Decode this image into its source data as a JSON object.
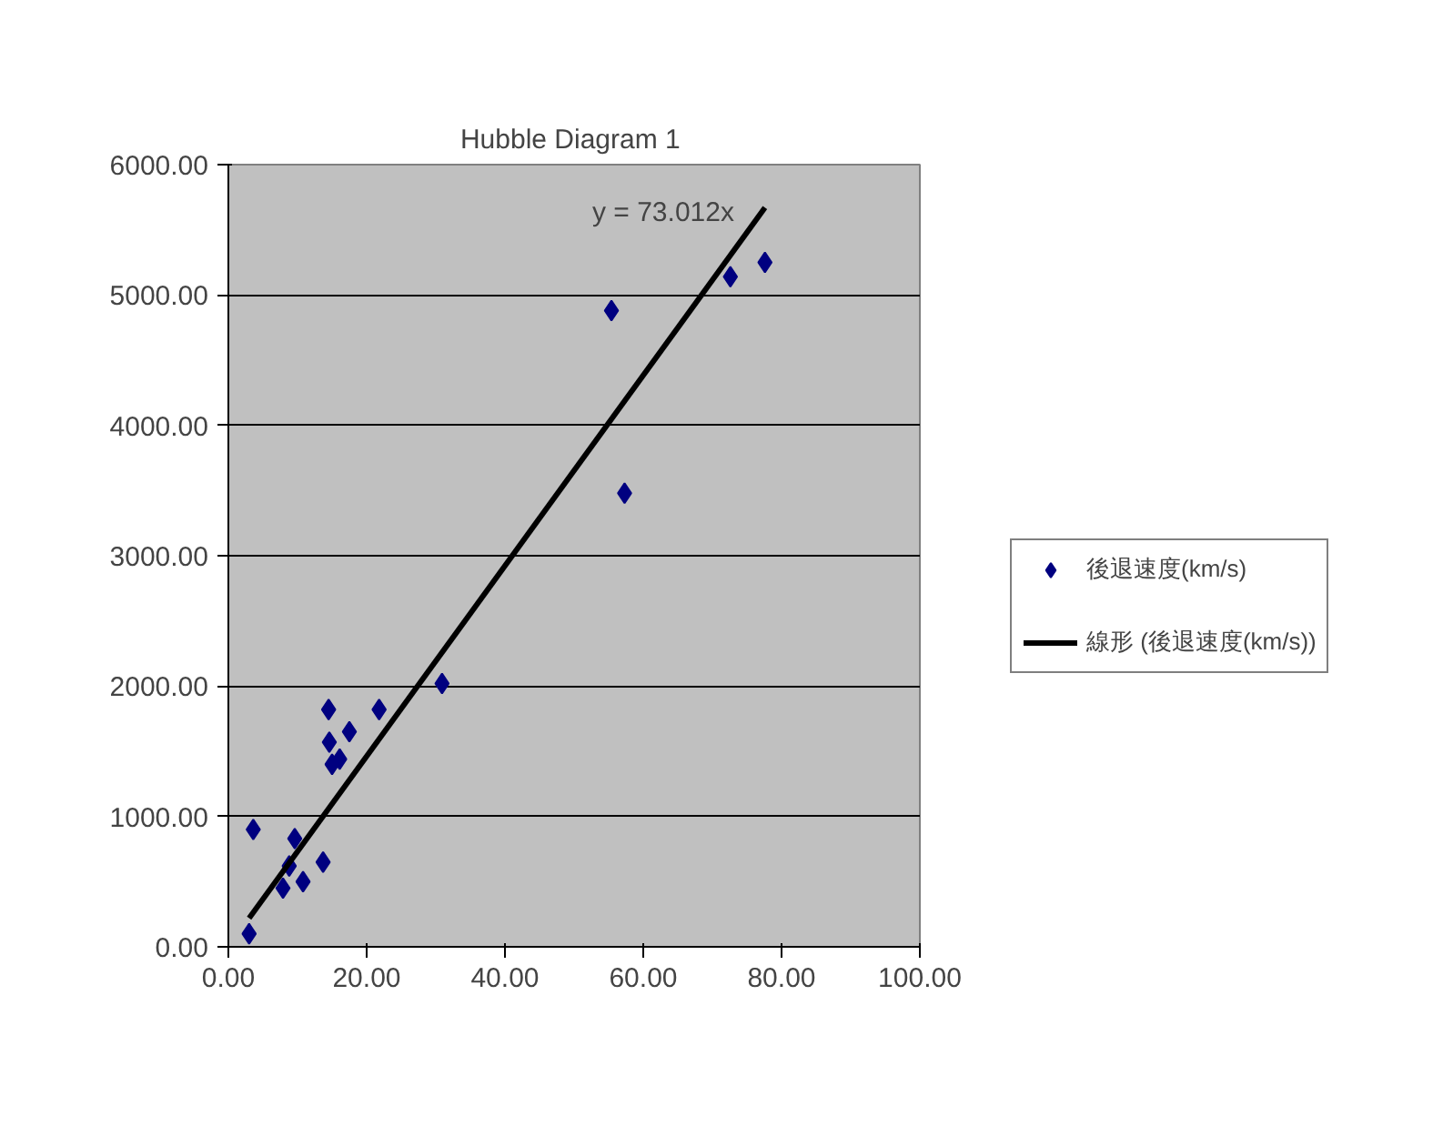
{
  "chart_data": {
    "type": "scatter",
    "title": "Hubble Diagram  1",
    "xlim": [
      0,
      100
    ],
    "xticks": [
      {
        "value": 0,
        "label": "0.00"
      },
      {
        "value": 20,
        "label": "20.00"
      },
      {
        "value": 40,
        "label": "40.00"
      },
      {
        "value": 60,
        "label": "60.00"
      },
      {
        "value": 80,
        "label": "80.00"
      },
      {
        "value": 100,
        "label": "100.00"
      }
    ],
    "ylim": [
      0,
      6000
    ],
    "yticks": [
      {
        "value": 0,
        "label": "0.00"
      },
      {
        "value": 1000,
        "label": "1000.00"
      },
      {
        "value": 2000,
        "label": "2000.00"
      },
      {
        "value": 3000,
        "label": "3000.00"
      },
      {
        "value": 4000,
        "label": "4000.00"
      },
      {
        "value": 5000,
        "label": "5000.00"
      },
      {
        "value": 6000,
        "label": "6000.00"
      }
    ],
    "grid": "y",
    "legend": "right",
    "series": [
      {
        "name": "後退速度(km/s)",
        "marker": "diamond",
        "color": "#000080",
        "x": [
          3.0,
          3.6,
          9.6,
          8.8,
          7.9,
          10.8,
          13.7,
          14.5,
          14.6,
          15.0,
          16.1,
          17.5,
          21.8,
          30.9,
          55.4,
          57.3,
          72.6,
          77.6
        ],
        "values": [
          100,
          900,
          830,
          620,
          450,
          500,
          650,
          1820,
          1570,
          1400,
          1440,
          1650,
          1820,
          2020,
          4880,
          3480,
          5140,
          5250
        ]
      },
      {
        "name": "線形 (後退速度(km/s))",
        "type": "line",
        "color": "#000000",
        "x": [
          3.0,
          77.6
        ],
        "values": [
          220,
          5670
        ]
      }
    ],
    "annotations": [
      "y = 73.012x"
    ]
  }
}
